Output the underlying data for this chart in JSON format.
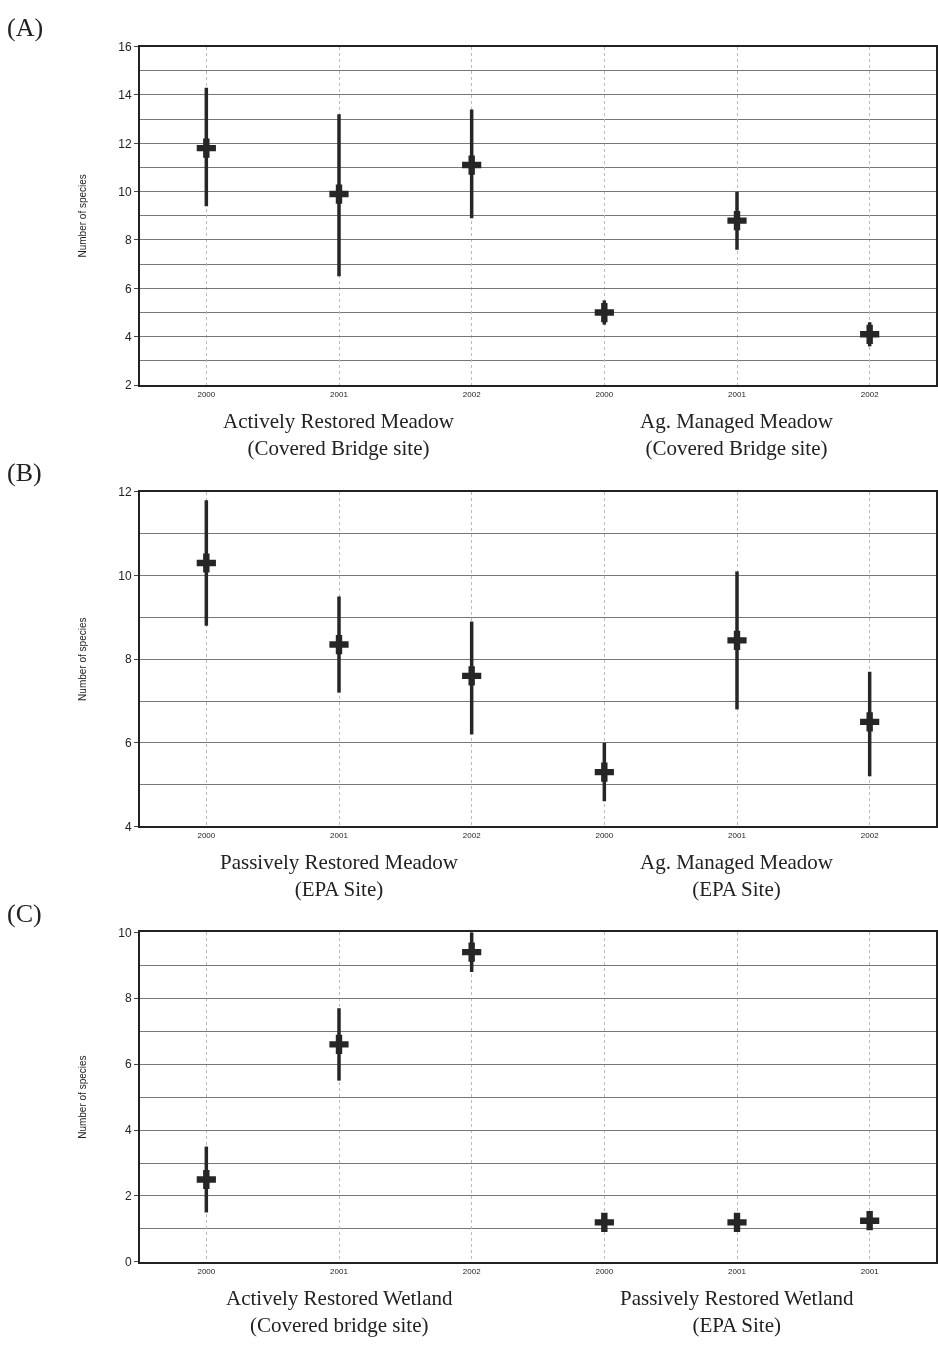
{
  "chart_data": [
    {
      "type": "scatter",
      "title": "(A)",
      "ylabel": "Number of species",
      "categories": [
        "2000",
        "2001",
        "2002",
        "2000",
        "2001",
        "2002"
      ],
      "series": [
        {
          "color": "#262626",
          "values": [
            11.8,
            9.9,
            11.1,
            5.0,
            8.8,
            4.1
          ],
          "errors": [
            [
              9.4,
              14.3
            ],
            [
              6.5,
              13.2
            ],
            [
              8.9,
              13.4
            ],
            [
              4.5,
              5.5
            ],
            [
              7.6,
              10.0
            ],
            [
              3.6,
              4.6
            ]
          ]
        }
      ],
      "ylim": [
        2,
        16
      ],
      "yticks": [
        2,
        4,
        6,
        8,
        10,
        12,
        14,
        16
      ],
      "grid": true,
      "marker": "cross",
      "annotations": [
        "Actively Restored Meadow\n(Covered Bridge site)",
        "Ag. Managed Meadow\n(Covered Bridge site)"
      ]
    },
    {
      "type": "scatter",
      "title": "(B)",
      "ylabel": "Number of species",
      "categories": [
        "2000",
        "2001",
        "2002",
        "2000",
        "2001",
        "2002"
      ],
      "series": [
        {
          "color": "#262626",
          "values": [
            10.3,
            8.35,
            7.6,
            5.3,
            8.45,
            6.5
          ],
          "errors": [
            [
              8.8,
              11.8
            ],
            [
              7.2,
              9.5
            ],
            [
              6.2,
              8.9
            ],
            [
              4.6,
              6.0
            ],
            [
              6.8,
              10.1
            ],
            [
              5.2,
              7.7
            ]
          ]
        }
      ],
      "ylim": [
        4,
        12
      ],
      "yticks": [
        4,
        6,
        8,
        10,
        12
      ],
      "grid": true,
      "marker": "cross",
      "annotations": [
        "Passively Restored Meadow\n(EPA Site)",
        "Ag. Managed Meadow\n(EPA Site)"
      ]
    },
    {
      "type": "scatter",
      "title": "(C)",
      "ylabel": "Number of species",
      "categories": [
        "2000",
        "2001",
        "2002",
        "2000",
        "2001",
        "2001"
      ],
      "series": [
        {
          "color": "#262626",
          "values": [
            2.5,
            6.6,
            9.4,
            1.2,
            1.2,
            1.25
          ],
          "errors": [
            [
              1.5,
              3.5
            ],
            [
              5.5,
              7.7
            ],
            [
              8.8,
              10.0
            ],
            null,
            null,
            null
          ]
        }
      ],
      "ylim": [
        0,
        10
      ],
      "yticks": [
        0,
        2,
        4,
        6,
        8,
        10
      ],
      "grid": true,
      "marker": "cross",
      "annotations": [
        "Actively Restored Wetland\n(Covered bridge site)",
        "Passively Restored Wetland\n(EPA Site)"
      ]
    }
  ]
}
